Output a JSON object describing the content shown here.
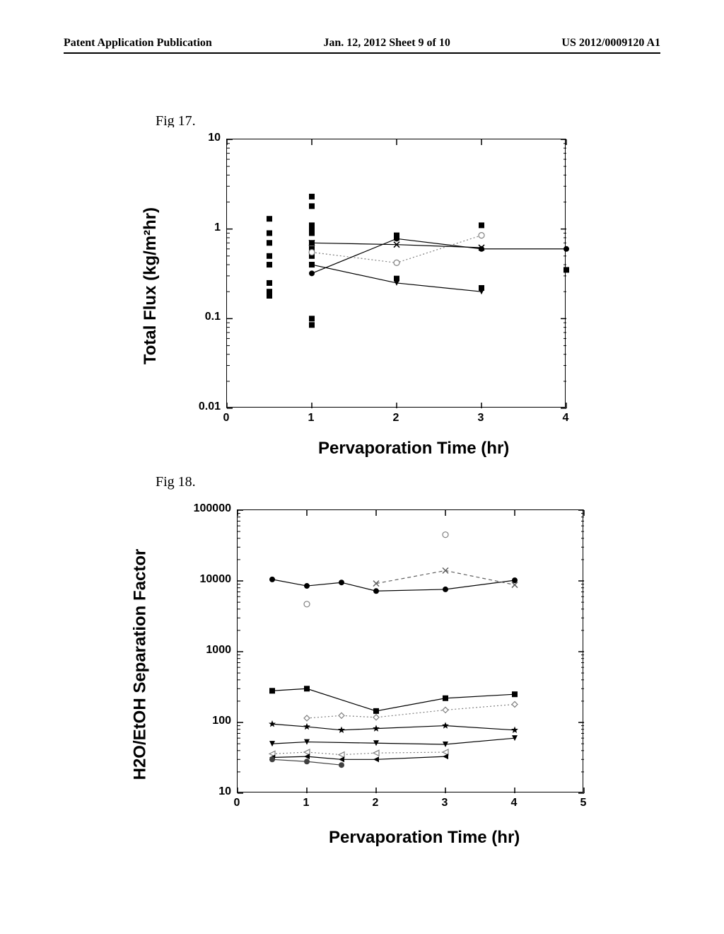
{
  "header": {
    "left": "Patent Application Publication",
    "center": "Jan. 12, 2012  Sheet 9 of 10",
    "right": "US 2012/0009120 A1"
  },
  "fig17": {
    "label": "Fig 17.",
    "type": "scatter-line",
    "ylabel": "Total Flux (kg/m²hr)",
    "xlabel": "Pervaporation Time (hr)",
    "yscale": "log",
    "ylim": [
      0.01,
      10
    ],
    "xlim": [
      0,
      4
    ],
    "yticks": [
      0.01,
      0.1,
      1,
      10
    ],
    "ytick_labels": [
      "0.01",
      "0.1",
      "1",
      "10"
    ],
    "xticks": [
      0,
      1,
      2,
      3,
      4
    ],
    "xtick_labels": [
      "0",
      "1",
      "2",
      "3",
      "4"
    ],
    "label_fontsize": 24,
    "tick_fontsize": 16,
    "axis_color": "#000000",
    "background_color": "#ffffff",
    "series": [
      {
        "marker": "square-filled",
        "color": "#000000",
        "line": false,
        "points": [
          [
            0.5,
            1.3
          ],
          [
            0.5,
            0.9
          ],
          [
            0.5,
            0.5
          ],
          [
            0.5,
            0.7
          ],
          [
            0.5,
            0.4
          ],
          [
            0.5,
            0.25
          ],
          [
            0.5,
            0.2
          ],
          [
            0.5,
            0.18
          ],
          [
            1,
            2.3
          ],
          [
            1,
            1.8
          ],
          [
            1,
            1.1
          ],
          [
            1,
            1.0
          ],
          [
            1,
            0.9
          ],
          [
            1,
            0.7
          ],
          [
            1,
            0.6
          ],
          [
            1,
            0.5
          ],
          [
            1,
            0.4
          ],
          [
            1,
            0.1
          ],
          [
            1,
            0.085
          ],
          [
            2,
            0.85
          ],
          [
            2,
            0.8
          ],
          [
            2,
            0.28
          ],
          [
            3,
            1.1
          ],
          [
            3,
            0.22
          ],
          [
            4,
            0.35
          ]
        ]
      },
      {
        "marker": "triangle-down-filled",
        "color": "#000000",
        "line": true,
        "points": [
          [
            1,
            0.4
          ],
          [
            2,
            0.25
          ],
          [
            3,
            0.2
          ]
        ]
      },
      {
        "marker": "circle-open",
        "color": "#808080",
        "line": true,
        "line_style": "dotted",
        "points": [
          [
            1,
            0.55
          ],
          [
            2,
            0.42
          ],
          [
            3,
            0.85
          ]
        ]
      },
      {
        "marker": "circle-filled",
        "color": "#000000",
        "line": true,
        "points": [
          [
            1,
            0.32
          ],
          [
            2,
            0.78
          ],
          [
            3,
            0.6
          ],
          [
            4,
            0.6
          ]
        ]
      },
      {
        "marker": "x",
        "color": "#000000",
        "line": true,
        "points": [
          [
            1,
            0.7
          ],
          [
            2,
            0.67
          ],
          [
            3,
            0.62
          ]
        ]
      }
    ]
  },
  "fig18": {
    "label": "Fig 18.",
    "type": "scatter-line",
    "ylabel": "H2O/EtOH Separation Factor",
    "xlabel": "Pervaporation Time (hr)",
    "yscale": "log",
    "ylim": [
      10,
      100000
    ],
    "xlim": [
      0,
      5
    ],
    "yticks": [
      10,
      100,
      1000,
      10000,
      100000
    ],
    "ytick_labels": [
      "10",
      "100",
      "1000",
      "10000",
      "100000"
    ],
    "xticks": [
      0,
      1,
      2,
      3,
      4,
      5
    ],
    "xtick_labels": [
      "0",
      "1",
      "2",
      "3",
      "4",
      "5"
    ],
    "label_fontsize": 24,
    "tick_fontsize": 16,
    "axis_color": "#000000",
    "background_color": "#ffffff",
    "series": [
      {
        "marker": "circle-filled",
        "color": "#000000",
        "line": true,
        "points": [
          [
            0.5,
            10500
          ],
          [
            1,
            8500
          ],
          [
            1.5,
            9500
          ],
          [
            2,
            7200
          ],
          [
            3,
            7600
          ],
          [
            4,
            10200
          ]
        ]
      },
      {
        "marker": "x",
        "color": "#606060",
        "line": true,
        "line_style": "dashed",
        "points": [
          [
            2,
            9200
          ],
          [
            3,
            14000
          ],
          [
            4,
            8800
          ]
        ]
      },
      {
        "marker": "circle-open",
        "color": "#808080",
        "line": false,
        "points": [
          [
            1,
            4700
          ],
          [
            3,
            45000
          ]
        ]
      },
      {
        "marker": "square-filled",
        "color": "#000000",
        "line": true,
        "points": [
          [
            0.5,
            280
          ],
          [
            1,
            300
          ],
          [
            2,
            145
          ],
          [
            3,
            220
          ],
          [
            4,
            250
          ]
        ]
      },
      {
        "marker": "diamond-open",
        "color": "#808080",
        "line": true,
        "line_style": "dotted",
        "points": [
          [
            1,
            115
          ],
          [
            1.5,
            125
          ],
          [
            2,
            118
          ],
          [
            3,
            150
          ],
          [
            4,
            180
          ]
        ]
      },
      {
        "marker": "star-filled",
        "color": "#000000",
        "line": true,
        "points": [
          [
            0.5,
            95
          ],
          [
            1,
            87
          ],
          [
            1.5,
            78
          ],
          [
            2,
            82
          ],
          [
            3,
            90
          ],
          [
            4,
            78
          ]
        ]
      },
      {
        "marker": "triangle-down-filled",
        "color": "#000000",
        "line": true,
        "points": [
          [
            0.5,
            50
          ],
          [
            1,
            53
          ],
          [
            2,
            51
          ],
          [
            3,
            49
          ],
          [
            4,
            60
          ]
        ]
      },
      {
        "marker": "triangle-left-open",
        "color": "#808080",
        "line": true,
        "line_style": "dotted",
        "points": [
          [
            0.5,
            36
          ],
          [
            1,
            38
          ],
          [
            1.5,
            35
          ],
          [
            2,
            37
          ],
          [
            3,
            38
          ]
        ]
      },
      {
        "marker": "triangle-left-filled",
        "color": "#000000",
        "line": true,
        "points": [
          [
            0.5,
            32
          ],
          [
            1,
            33
          ],
          [
            1.5,
            30
          ],
          [
            2,
            30
          ],
          [
            3,
            33
          ]
        ]
      },
      {
        "marker": "circle-filled-small",
        "color": "#404040",
        "line": true,
        "points": [
          [
            0.5,
            30
          ],
          [
            1,
            28
          ],
          [
            1.5,
            25
          ]
        ]
      }
    ]
  }
}
